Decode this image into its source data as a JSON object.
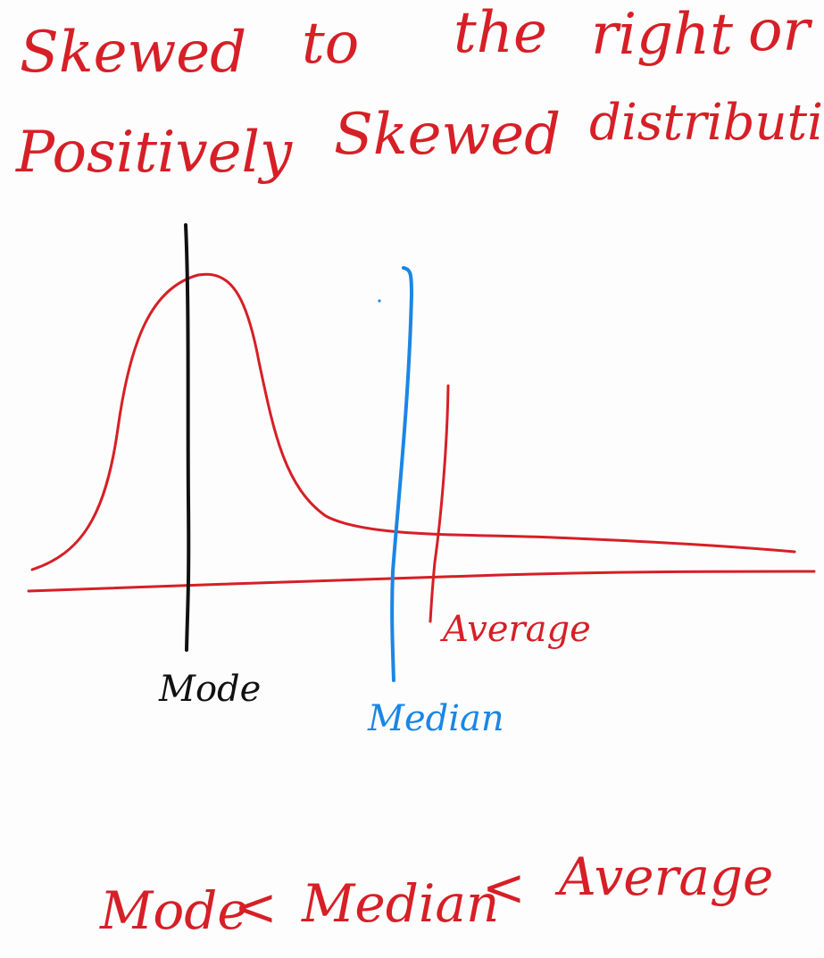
{
  "title": {
    "line1": [
      "Skewed",
      "to",
      "the",
      "right",
      "or"
    ],
    "line2": [
      "Positively",
      "Skewed",
      "distribution"
    ]
  },
  "labels": {
    "mode": "Mode",
    "median": "Median",
    "average": "Average"
  },
  "formula": {
    "term1": "Mode",
    "op1": "<",
    "term2": "Median",
    "op2": "<",
    "term3": "Average"
  },
  "colors": {
    "ink_red": "#d61f26",
    "ink_black": "#111111",
    "ink_blue": "#1a86e6",
    "board": "#fdfdfd"
  }
}
